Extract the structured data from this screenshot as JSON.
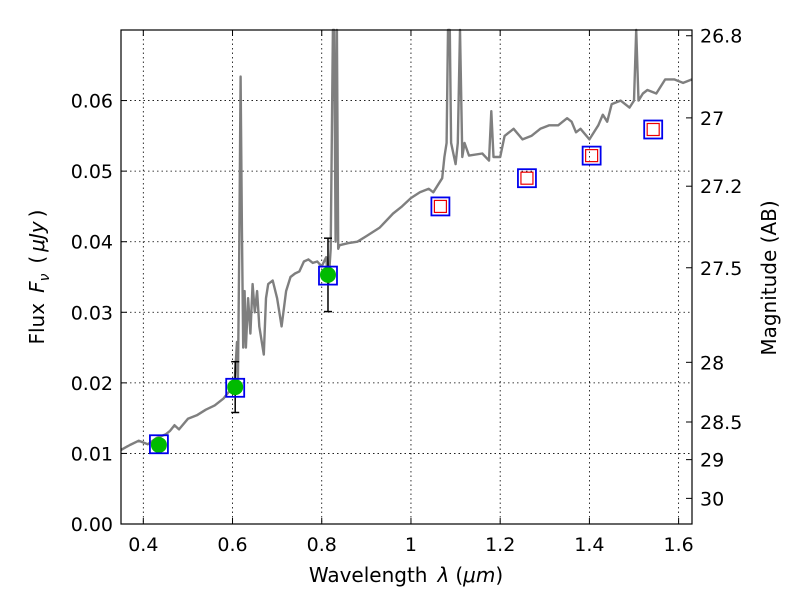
{
  "chart_data": {
    "type": "scatter",
    "xlabel": {
      "text": "Wavelength",
      "sym": "λ",
      "unit_open": "(",
      "unit": "μm",
      "unit_close": ")"
    },
    "ylabel": {
      "text": "Flux",
      "sym": "F",
      "sub": "ν",
      "unit_open": "(",
      "unit": "μJy",
      "unit_close": ")"
    },
    "y2label": "Magnitude (AB)",
    "xlim": [
      0.35,
      1.63
    ],
    "ylim": [
      0.0,
      0.07
    ],
    "xticks": [
      {
        "v": 0.4,
        "label": "0.4"
      },
      {
        "v": 0.6,
        "label": "0.6"
      },
      {
        "v": 0.8,
        "label": "0.8"
      },
      {
        "v": 1.0,
        "label": "1"
      },
      {
        "v": 1.2,
        "label": "1.2"
      },
      {
        "v": 1.4,
        "label": "1.4"
      },
      {
        "v": 1.6,
        "label": "1.6"
      }
    ],
    "yticks": [
      {
        "v": 0.0,
        "label": "0.00"
      },
      {
        "v": 0.01,
        "label": "0.01"
      },
      {
        "v": 0.02,
        "label": "0.02"
      },
      {
        "v": 0.03,
        "label": "0.03"
      },
      {
        "v": 0.04,
        "label": "0.04"
      },
      {
        "v": 0.05,
        "label": "0.05"
      },
      {
        "v": 0.06,
        "label": "0.06"
      }
    ],
    "y2ticks": [
      {
        "mag": 26.8,
        "label": "26.8"
      },
      {
        "mag": 27.0,
        "label": "27"
      },
      {
        "mag": 27.2,
        "label": "27.2"
      },
      {
        "mag": 27.5,
        "label": "27.5"
      },
      {
        "mag": 28.0,
        "label": "28"
      },
      {
        "mag": 28.5,
        "label": "28.5"
      },
      {
        "mag": 29.0,
        "label": "29"
      },
      {
        "mag": 30.0,
        "label": "30"
      }
    ],
    "grid": true,
    "series": [
      {
        "name": "model-spectrum",
        "kind": "line",
        "color": "#7f7f7f",
        "points": [
          [
            0.35,
            0.0105
          ],
          [
            0.37,
            0.0112
          ],
          [
            0.39,
            0.0118
          ],
          [
            0.41,
            0.0113
          ],
          [
            0.43,
            0.0122
          ],
          [
            0.45,
            0.0127
          ],
          [
            0.46,
            0.0132
          ],
          [
            0.47,
            0.014
          ],
          [
            0.48,
            0.0134
          ],
          [
            0.5,
            0.0149
          ],
          [
            0.52,
            0.0154
          ],
          [
            0.54,
            0.0162
          ],
          [
            0.56,
            0.0168
          ],
          [
            0.58,
            0.0178
          ],
          [
            0.59,
            0.0186
          ],
          [
            0.6,
            0.0192
          ],
          [
            0.605,
            0.0205
          ],
          [
            0.61,
            0.0258
          ],
          [
            0.612,
            0.02
          ],
          [
            0.615,
            0.038
          ],
          [
            0.618,
            0.0634
          ],
          [
            0.621,
            0.042
          ],
          [
            0.624,
            0.025
          ],
          [
            0.627,
            0.033
          ],
          [
            0.63,
            0.025
          ],
          [
            0.635,
            0.032
          ],
          [
            0.64,
            0.027
          ],
          [
            0.645,
            0.034
          ],
          [
            0.65,
            0.03
          ],
          [
            0.655,
            0.033
          ],
          [
            0.66,
            0.028
          ],
          [
            0.67,
            0.024
          ],
          [
            0.675,
            0.032
          ],
          [
            0.68,
            0.034
          ],
          [
            0.69,
            0.0345
          ],
          [
            0.7,
            0.032
          ],
          [
            0.71,
            0.028
          ],
          [
            0.72,
            0.033
          ],
          [
            0.73,
            0.035
          ],
          [
            0.74,
            0.0355
          ],
          [
            0.75,
            0.0358
          ],
          [
            0.76,
            0.0372
          ],
          [
            0.77,
            0.0375
          ],
          [
            0.78,
            0.037
          ],
          [
            0.79,
            0.0372
          ],
          [
            0.8,
            0.0365
          ],
          [
            0.81,
            0.0378
          ],
          [
            0.815,
            0.034
          ],
          [
            0.82,
            0.039
          ],
          [
            0.825,
            0.07
          ],
          [
            0.828,
            0.07
          ],
          [
            0.831,
            0.04
          ],
          [
            0.834,
            0.07
          ],
          [
            0.837,
            0.039
          ],
          [
            0.84,
            0.0395
          ],
          [
            0.86,
            0.0398
          ],
          [
            0.88,
            0.04
          ],
          [
            0.9,
            0.0408
          ],
          [
            0.93,
            0.042
          ],
          [
            0.96,
            0.044
          ],
          [
            0.98,
            0.045
          ],
          [
            1.0,
            0.0462
          ],
          [
            1.02,
            0.047
          ],
          [
            1.04,
            0.0475
          ],
          [
            1.05,
            0.047
          ],
          [
            1.06,
            0.048
          ],
          [
            1.07,
            0.049
          ],
          [
            1.075,
            0.052
          ],
          [
            1.08,
            0.054
          ],
          [
            1.083,
            0.07
          ],
          [
            1.087,
            0.07
          ],
          [
            1.09,
            0.054
          ],
          [
            1.1,
            0.051
          ],
          [
            1.105,
            0.054
          ],
          [
            1.11,
            0.07
          ],
          [
            1.115,
            0.052
          ],
          [
            1.12,
            0.054
          ],
          [
            1.13,
            0.0522
          ],
          [
            1.16,
            0.0525
          ],
          [
            1.175,
            0.0515
          ],
          [
            1.18,
            0.0585
          ],
          [
            1.185,
            0.052
          ],
          [
            1.2,
            0.052
          ],
          [
            1.21,
            0.055
          ],
          [
            1.23,
            0.056
          ],
          [
            1.25,
            0.0545
          ],
          [
            1.27,
            0.055
          ],
          [
            1.29,
            0.056
          ],
          [
            1.31,
            0.0565
          ],
          [
            1.33,
            0.0565
          ],
          [
            1.35,
            0.0575
          ],
          [
            1.36,
            0.057
          ],
          [
            1.37,
            0.0555
          ],
          [
            1.38,
            0.056
          ],
          [
            1.4,
            0.0545
          ],
          [
            1.42,
            0.0565
          ],
          [
            1.43,
            0.058
          ],
          [
            1.44,
            0.057
          ],
          [
            1.45,
            0.0595
          ],
          [
            1.47,
            0.06
          ],
          [
            1.49,
            0.059
          ],
          [
            1.5,
            0.06
          ],
          [
            1.505,
            0.07
          ],
          [
            1.51,
            0.06
          ],
          [
            1.52,
            0.061
          ],
          [
            1.53,
            0.0615
          ],
          [
            1.55,
            0.061
          ],
          [
            1.57,
            0.063
          ],
          [
            1.59,
            0.063
          ],
          [
            1.61,
            0.0625
          ],
          [
            1.63,
            0.063
          ]
        ]
      },
      {
        "name": "observed-green",
        "kind": "errorbar",
        "marker": "circle",
        "color": "#00bb00",
        "points": [
          {
            "x": 0.435,
            "y": 0.0112,
            "err": 0.0
          },
          {
            "x": 0.606,
            "y": 0.0194,
            "err": 0.0036
          },
          {
            "x": 0.814,
            "y": 0.0353,
            "err": 0.0052
          }
        ]
      },
      {
        "name": "model-photometry",
        "kind": "scatter",
        "marker": "square",
        "color": "#0000ee",
        "points": [
          {
            "x": 0.435,
            "y": 0.0113
          },
          {
            "x": 0.606,
            "y": 0.0193
          },
          {
            "x": 0.814,
            "y": 0.0352
          },
          {
            "x": 1.066,
            "y": 0.045
          },
          {
            "x": 1.26,
            "y": 0.049
          },
          {
            "x": 1.405,
            "y": 0.0522
          },
          {
            "x": 1.543,
            "y": 0.0559
          }
        ]
      },
      {
        "name": "upper-limits",
        "kind": "scatter",
        "marker": "open-square",
        "color": "#ee0000",
        "points": [
          {
            "x": 1.066,
            "y": 0.045
          },
          {
            "x": 1.26,
            "y": 0.049
          },
          {
            "x": 1.405,
            "y": 0.0522
          },
          {
            "x": 1.543,
            "y": 0.0559
          }
        ]
      }
    ]
  }
}
